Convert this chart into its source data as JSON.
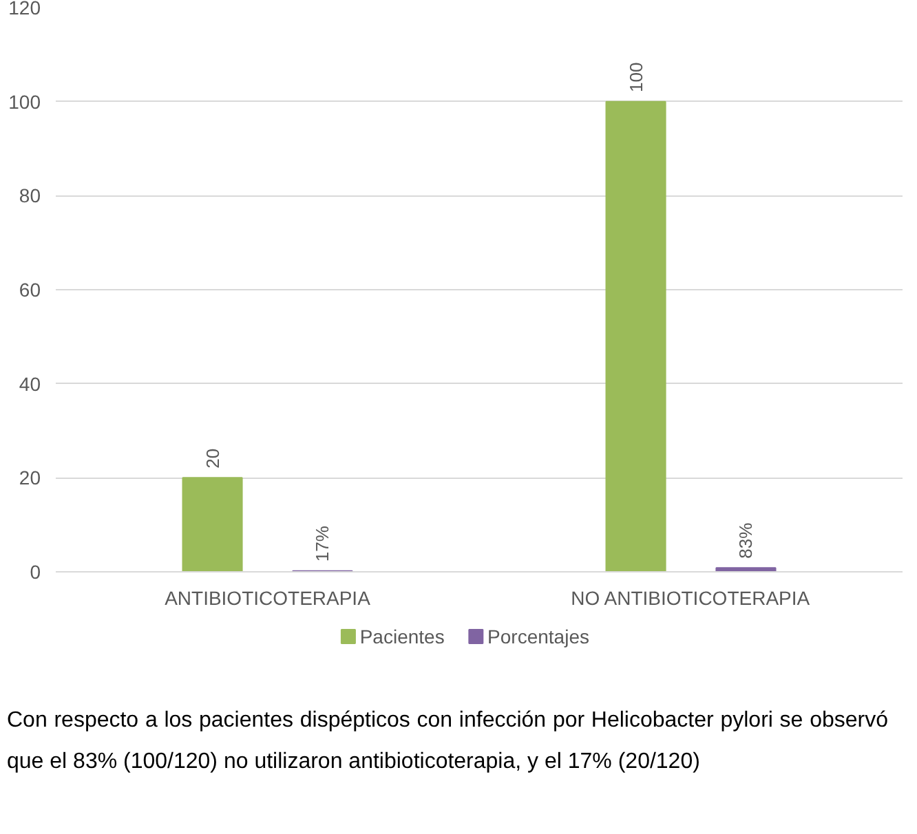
{
  "chart_data": {
    "type": "bar",
    "categories": [
      "ANTIBIOTICOTERAPIA",
      "NO ANTIBIOTICOTERAPIA"
    ],
    "series": [
      {
        "name": "Pacientes",
        "color": "#9bbb59",
        "values": [
          20,
          100
        ],
        "value_labels": [
          "20",
          "100"
        ]
      },
      {
        "name": "Porcentajes",
        "color": "#8064a2",
        "values": [
          0.17,
          0.83
        ],
        "value_labels": [
          "17%",
          "83%"
        ]
      }
    ],
    "ylim": [
      0,
      120
    ],
    "yticks": [
      0,
      20,
      40,
      60,
      80,
      100,
      120
    ],
    "grid": "y",
    "legend": "bottom",
    "annotations": [
      "Con respecto a los pacientes dispépticos con infección por Helicobacter pylori se observó que el 83% (100/120) no utilizaron antibioticoterapia, y el 17% (20/120)"
    ]
  }
}
